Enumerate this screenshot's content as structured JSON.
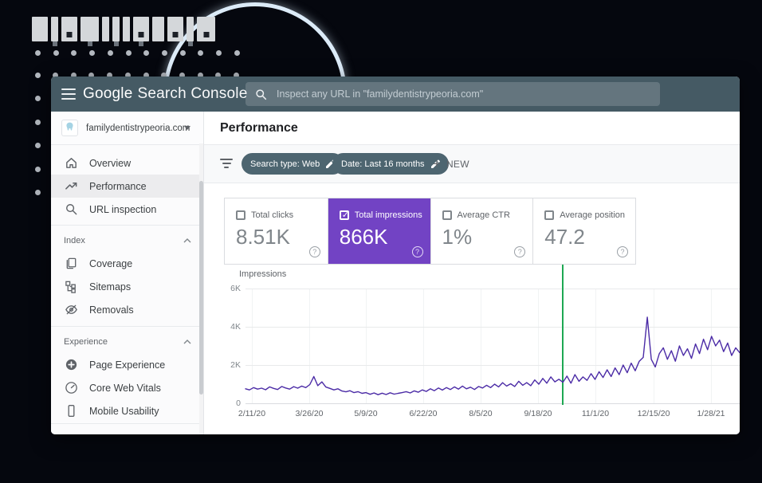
{
  "header": {
    "logo_part1": "Google",
    "logo_part2": "Search Console",
    "search_placeholder": "Inspect any URL in \"familydentistrypeoria.com\""
  },
  "sidebar": {
    "property": "familydentistrypeoria.com",
    "nav": [
      {
        "label": "Overview",
        "icon": "home-icon",
        "active": false
      },
      {
        "label": "Performance",
        "icon": "trending-up-icon",
        "active": true
      },
      {
        "label": "URL inspection",
        "icon": "search-icon",
        "active": false
      }
    ],
    "sections": [
      {
        "label": "Index",
        "items": [
          {
            "label": "Coverage",
            "icon": "pages-icon"
          },
          {
            "label": "Sitemaps",
            "icon": "sitemap-icon"
          },
          {
            "label": "Removals",
            "icon": "eye-off-icon"
          }
        ]
      },
      {
        "label": "Experience",
        "items": [
          {
            "label": "Page Experience",
            "icon": "plus-circle-icon"
          },
          {
            "label": "Core Web Vitals",
            "icon": "gauge-icon"
          },
          {
            "label": "Mobile Usability",
            "icon": "phone-icon"
          }
        ]
      }
    ]
  },
  "main": {
    "title": "Performance",
    "filter_bar": {
      "chips": [
        {
          "label": "Search type: Web"
        },
        {
          "label": "Date: Last 16 months"
        }
      ],
      "new_button": "NEW"
    },
    "metric_cards": [
      {
        "label": "Total clicks",
        "value": "8.51K",
        "checked": false
      },
      {
        "label": "Total impressions",
        "value": "866K",
        "checked": true
      },
      {
        "label": "Average CTR",
        "value": "1%",
        "checked": false
      },
      {
        "label": "Average position",
        "value": "47.2",
        "checked": false
      }
    ]
  },
  "chart_data": {
    "type": "line",
    "title": "Impressions",
    "ylabel": "Impressions",
    "xlabel": "",
    "ylim": [
      0,
      6000
    ],
    "grid": "on",
    "legend": "off",
    "y_tick_labels": [
      "6K",
      "4K",
      "2K",
      "0"
    ],
    "x_tick_labels": [
      "2/11/20",
      "3/26/20",
      "5/9/20",
      "6/22/20",
      "8/5/20",
      "9/18/20",
      "11/1/20",
      "12/15/20",
      "1/28/21"
    ],
    "series": [
      {
        "name": "Total impressions",
        "color": "#4b2ba6",
        "values": [
          760,
          700,
          820,
          740,
          790,
          710,
          860,
          780,
          720,
          880,
          800,
          740,
          870,
          790,
          900,
          820,
          980,
          1400,
          920,
          1120,
          850,
          780,
          700,
          760,
          640,
          600,
          660,
          560,
          610,
          520,
          560,
          470,
          540,
          450,
          530,
          460,
          550,
          480,
          520,
          560,
          610,
          540,
          650,
          580,
          700,
          620,
          760,
          660,
          800,
          690,
          820,
          720,
          860,
          740,
          900,
          760,
          840,
          720,
          880,
          800,
          940,
          820,
          1000,
          860,
          1080,
          900,
          1020,
          880,
          1150,
          940,
          1080,
          920,
          1220,
          1000,
          1300,
          1050,
          1380,
          1120,
          1260,
          1100,
          1420,
          1050,
          1500,
          1150,
          1380,
          1200,
          1550,
          1250,
          1650,
          1350,
          1750,
          1400,
          1850,
          1500,
          2000,
          1600,
          2100,
          1700,
          2200,
          2400,
          4500,
          2300,
          1900,
          2600,
          2900,
          2300,
          2750,
          2200,
          3000,
          2500,
          2850,
          2350,
          3100,
          2600,
          3350,
          2800,
          3500,
          3000,
          3300,
          2700,
          3150,
          2500,
          2900,
          2650
        ]
      }
    ],
    "annotation": {
      "type": "vertical_line",
      "color": "#1ea853",
      "x_fraction": 0.64
    }
  },
  "colors": {
    "header_bg": "#455a64",
    "chip_bg": "#4d6570",
    "selected_card_bg": "#7243c4",
    "line_color": "#4b2ba6",
    "annotation_green": "#1ea853",
    "decor_circle": "#dcebf8"
  }
}
